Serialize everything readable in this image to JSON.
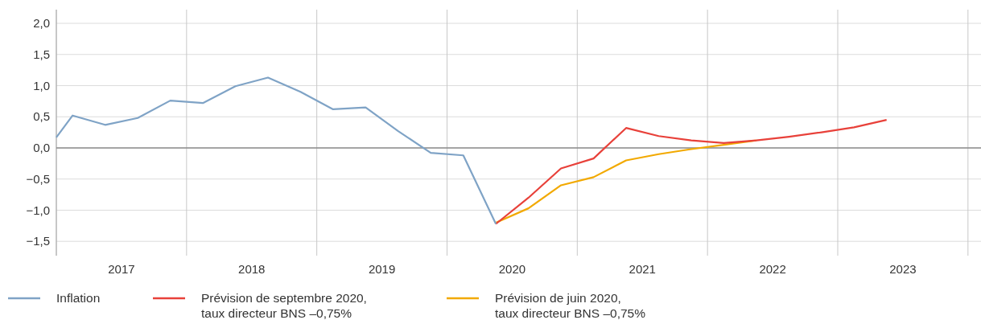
{
  "chart_data": {
    "type": "line",
    "xlim": [
      2017,
      2024.1
    ],
    "ylim": [
      -1.73,
      2.22
    ],
    "xticks": [
      {
        "value": 2017,
        "label": null
      },
      {
        "value": 2017.5,
        "label": "2017"
      },
      {
        "value": 2018,
        "label": null
      },
      {
        "value": 2018.5,
        "label": "2018"
      },
      {
        "value": 2019,
        "label": null
      },
      {
        "value": 2019.5,
        "label": "2019"
      },
      {
        "value": 2020,
        "label": null
      },
      {
        "value": 2020.5,
        "label": "2020"
      },
      {
        "value": 2021,
        "label": null
      },
      {
        "value": 2021.5,
        "label": "2021"
      },
      {
        "value": 2022,
        "label": null
      },
      {
        "value": 2022.5,
        "label": "2022"
      },
      {
        "value": 2023,
        "label": null
      },
      {
        "value": 2023.5,
        "label": "2023"
      },
      {
        "value": 2024,
        "label": null
      }
    ],
    "yticks": [
      {
        "value": -1.5,
        "label": "−1,5"
      },
      {
        "value": -1,
        "label": "−1,0"
      },
      {
        "value": -0.5,
        "label": "−0,5"
      },
      {
        "value": 0,
        "label": "0,0"
      },
      {
        "value": 0.5,
        "label": "0,5"
      },
      {
        "value": 1,
        "label": "1,0"
      },
      {
        "value": 1.5,
        "label": "1,5"
      },
      {
        "value": 2,
        "label": "2,0"
      }
    ],
    "grid": true,
    "legend": "bottom",
    "ref_lines": [
      {
        "axis": "y",
        "value": 0,
        "color": "#8c8c8c"
      }
    ],
    "series": [
      {
        "name": "Inflation",
        "color": "#7fa3c6",
        "x": [
          2017,
          2017.125,
          2017.375,
          2017.625,
          2017.875,
          2018.125,
          2018.375,
          2018.625,
          2018.875,
          2019.125,
          2019.375,
          2019.625,
          2019.875,
          2020.125,
          2020.375
        ],
        "values": [
          0.17,
          0.52,
          0.37,
          0.48,
          0.76,
          0.72,
          0.99,
          1.13,
          0.9,
          0.62,
          0.65,
          0.27,
          -0.08,
          -0.12,
          -1.22
        ]
      },
      {
        "name": "Prévision de septembre 2020,\ntaux directeur BNS –0,75%",
        "color": "#e8413a",
        "x": [
          2020.375,
          2020.625,
          2020.875,
          2021.125,
          2021.375,
          2021.625,
          2021.875,
          2022.125,
          2022.375,
          2022.625,
          2022.875,
          2023.125,
          2023.375
        ],
        "values": [
          -1.22,
          -0.8,
          -0.33,
          -0.17,
          0.32,
          0.19,
          0.12,
          0.08,
          0.12,
          0.18,
          0.25,
          0.33,
          0.45
        ]
      },
      {
        "name": "Prévision de juin 2020,\ntaux directeur BNS –0,75%",
        "color": "#f2a900",
        "x": [
          2020.375,
          2020.625,
          2020.875,
          2021.125,
          2021.375,
          2021.625,
          2021.875,
          2022.125,
          2022.375
        ],
        "values": [
          -1.2,
          -0.97,
          -0.6,
          -0.47,
          -0.2,
          -0.1,
          -0.02,
          0.05,
          0.12
        ]
      }
    ]
  }
}
